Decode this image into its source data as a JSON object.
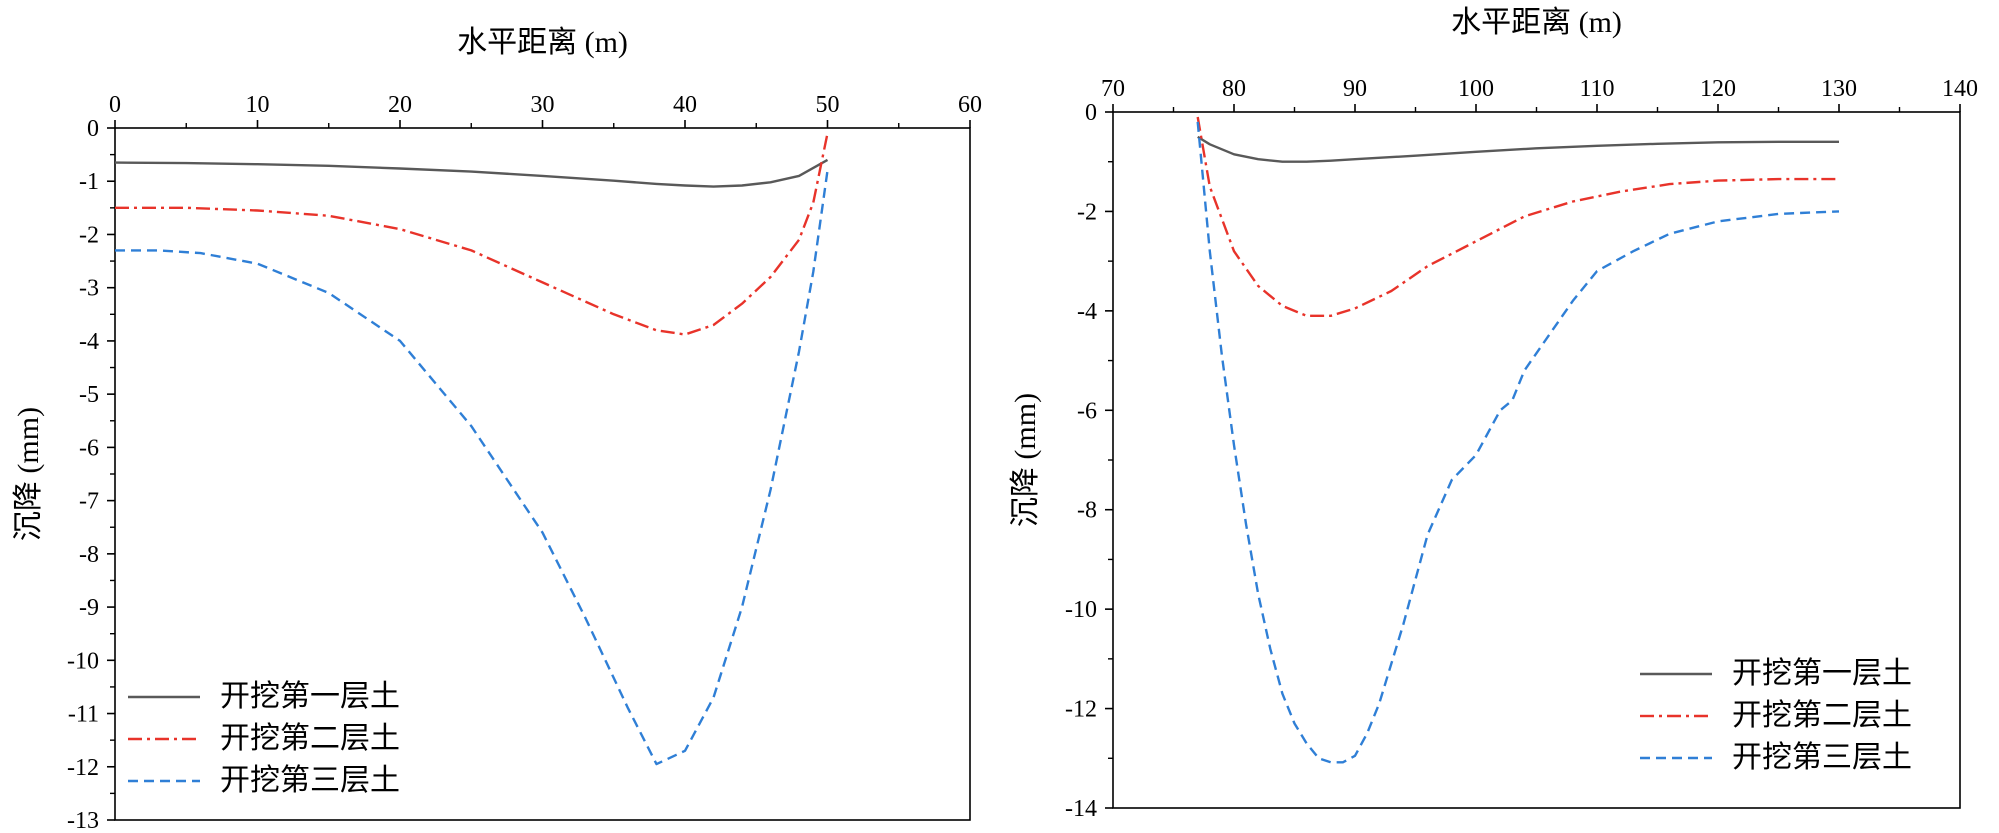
{
  "chart_data": [
    {
      "type": "line",
      "xlabel": "水平距离 (m)",
      "ylabel": "沉降 (mm)",
      "xlim": [
        0,
        60
      ],
      "ylim": [
        -13,
        0
      ],
      "xticks": [
        0,
        10,
        20,
        30,
        40,
        50,
        60
      ],
      "yticks": [
        0,
        -1,
        -2,
        -3,
        -4,
        -5,
        -6,
        -7,
        -8,
        -9,
        -10,
        -11,
        -12,
        -13
      ],
      "x_axis_position": "top",
      "legend_position": "bottom-left",
      "series": [
        {
          "name": "开挖第一层土",
          "color": "#595959",
          "style": "solid",
          "x": [
            0,
            5,
            10,
            15,
            20,
            25,
            30,
            35,
            38,
            40,
            42,
            44,
            46,
            48,
            50
          ],
          "y": [
            -0.65,
            -0.66,
            -0.68,
            -0.71,
            -0.76,
            -0.82,
            -0.9,
            -0.99,
            -1.05,
            -1.08,
            -1.1,
            -1.08,
            -1.02,
            -0.9,
            -0.6
          ]
        },
        {
          "name": "开挖第二层土",
          "color": "#e8332a",
          "style": "dashdot",
          "x": [
            0,
            5,
            10,
            15,
            20,
            25,
            30,
            35,
            38,
            40,
            42,
            44,
            46,
            48,
            49,
            50
          ],
          "y": [
            -1.5,
            -1.5,
            -1.55,
            -1.65,
            -1.9,
            -2.3,
            -2.9,
            -3.5,
            -3.8,
            -3.88,
            -3.7,
            -3.3,
            -2.8,
            -2.1,
            -1.4,
            -0.1
          ]
        },
        {
          "name": "开挖第三层土",
          "color": "#2f7fd6",
          "style": "dashed",
          "x": [
            0,
            3,
            6,
            10,
            15,
            20,
            25,
            30,
            33,
            36,
            38,
            40,
            42,
            44,
            46,
            48,
            49,
            50
          ],
          "y": [
            -2.3,
            -2.3,
            -2.35,
            -2.55,
            -3.1,
            -4.0,
            -5.6,
            -7.6,
            -9.2,
            -10.9,
            -11.95,
            -11.7,
            -10.7,
            -9.0,
            -6.8,
            -4.2,
            -2.7,
            -0.8
          ]
        }
      ]
    },
    {
      "type": "line",
      "xlabel": "水平距离 (m)",
      "ylabel": "沉降 (mm)",
      "xlim": [
        70,
        140
      ],
      "ylim": [
        -14,
        0
      ],
      "xticks": [
        70,
        80,
        90,
        100,
        110,
        120,
        130,
        140
      ],
      "yticks": [
        0,
        -2,
        -4,
        -6,
        -8,
        -10,
        -12,
        -14
      ],
      "x_axis_position": "top",
      "legend_position": "bottom-right",
      "series": [
        {
          "name": "开挖第一层土",
          "color": "#595959",
          "style": "solid",
          "x": [
            77,
            78,
            80,
            82,
            84,
            86,
            88,
            90,
            95,
            100,
            105,
            110,
            115,
            120,
            125,
            130
          ],
          "y": [
            -0.5,
            -0.65,
            -0.85,
            -0.95,
            -1.0,
            -1.0,
            -0.98,
            -0.95,
            -0.88,
            -0.8,
            -0.73,
            -0.68,
            -0.64,
            -0.61,
            -0.6,
            -0.6
          ]
        },
        {
          "name": "开挖第二层土",
          "color": "#e8332a",
          "style": "dashdot",
          "x": [
            77,
            78,
            80,
            82,
            84,
            86,
            88,
            90,
            93,
            96,
            100,
            104,
            108,
            112,
            116,
            120,
            125,
            130
          ],
          "y": [
            -0.1,
            -1.5,
            -2.8,
            -3.5,
            -3.9,
            -4.1,
            -4.1,
            -3.95,
            -3.6,
            -3.1,
            -2.6,
            -2.1,
            -1.8,
            -1.6,
            -1.45,
            -1.38,
            -1.35,
            -1.35
          ]
        },
        {
          "name": "开挖第三层土",
          "color": "#2f7fd6",
          "style": "dashed",
          "x": [
            77,
            78,
            79,
            80,
            81,
            82,
            83,
            84,
            85,
            86,
            87,
            88,
            89,
            90,
            91,
            92,
            93,
            94,
            95,
            96,
            98,
            100,
            102,
            103,
            104,
            106,
            108,
            110,
            113,
            116,
            120,
            125,
            130
          ],
          "y": [
            -0.2,
            -2.8,
            -4.9,
            -6.7,
            -8.3,
            -9.7,
            -10.8,
            -11.7,
            -12.3,
            -12.7,
            -13.0,
            -13.08,
            -13.08,
            -12.95,
            -12.5,
            -11.9,
            -11.1,
            -10.3,
            -9.4,
            -8.5,
            -7.4,
            -6.9,
            -6.0,
            -5.8,
            -5.2,
            -4.5,
            -3.8,
            -3.2,
            -2.8,
            -2.45,
            -2.2,
            -2.05,
            -2.0
          ]
        }
      ]
    }
  ]
}
